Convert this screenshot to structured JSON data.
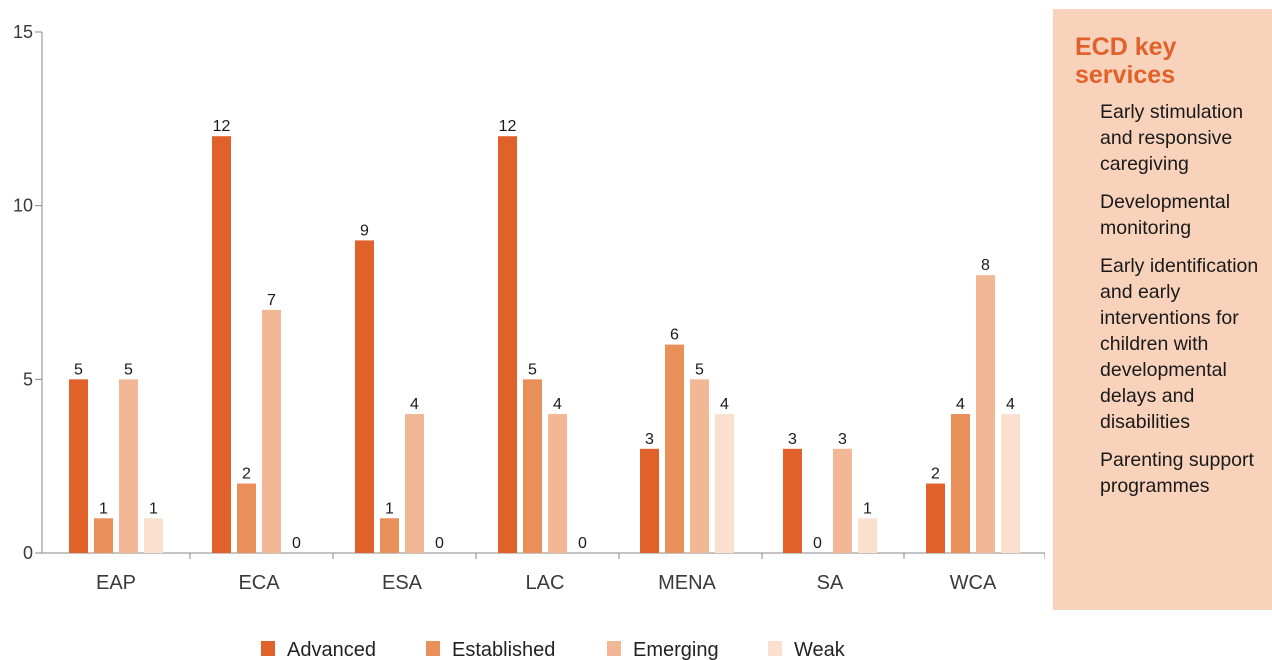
{
  "chart_data": {
    "type": "bar",
    "categories": [
      "EAP",
      "ECA",
      "ESA",
      "LAC",
      "MENA",
      "SA",
      "WCA"
    ],
    "series": [
      {
        "name": "Advanced",
        "values": [
          5,
          12,
          9,
          12,
          3,
          3,
          2
        ]
      },
      {
        "name": "Established",
        "values": [
          1,
          2,
          1,
          5,
          6,
          0,
          4
        ]
      },
      {
        "name": "Emerging",
        "values": [
          5,
          7,
          4,
          4,
          5,
          3,
          8
        ]
      },
      {
        "name": "Weak",
        "values": [
          1,
          0,
          0,
          0,
          4,
          1,
          4
        ]
      }
    ],
    "ylim": [
      0,
      15
    ],
    "yticks": [
      0,
      5,
      10,
      15
    ],
    "colors": [
      "#e0622a",
      "#e88f5a",
      "#f2b896",
      "#fbe0d0"
    ],
    "grid": false,
    "legend_position": "bottom"
  },
  "side_panel": {
    "title": "ECD key services",
    "items": [
      "Early stimulation and responsive caregiving",
      "Developmental monitoring",
      "Early identification and early interventions for children with developmental delays and disabilities",
      "Parenting support programmes"
    ]
  }
}
